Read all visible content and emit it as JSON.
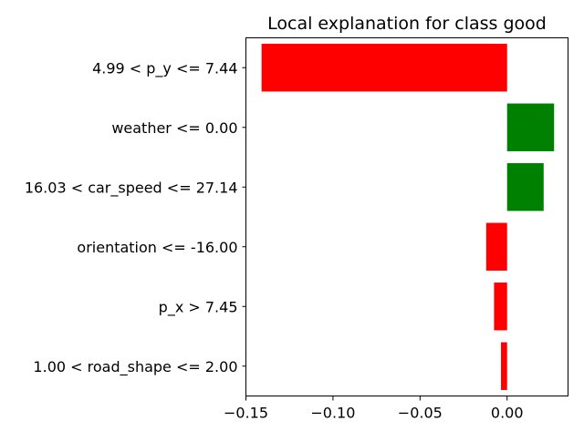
{
  "chart_data": {
    "type": "bar",
    "orientation": "horizontal",
    "title": "Local explanation for class good",
    "xlabel": "",
    "ylabel": "",
    "categories": [
      "4.99 < p_y <= 7.44",
      "weather <= 0.00",
      "16.03 < car_speed <= 27.14",
      "orientation <= -16.00",
      "p_x > 7.45",
      "1.00 < road_shape <= 2.00"
    ],
    "values": [
      -0.141,
      0.027,
      0.021,
      -0.012,
      -0.0075,
      -0.0035
    ],
    "xlim": [
      -0.15,
      0.035
    ],
    "xticks": [
      {
        "value": -0.15,
        "label": "−0.15"
      },
      {
        "value": -0.1,
        "label": "−0.10"
      },
      {
        "value": -0.05,
        "label": "−0.05"
      },
      {
        "value": 0.0,
        "label": "0.00"
      }
    ],
    "grid": false,
    "colors": {
      "positive": "#008000",
      "negative": "#ff0000"
    }
  }
}
